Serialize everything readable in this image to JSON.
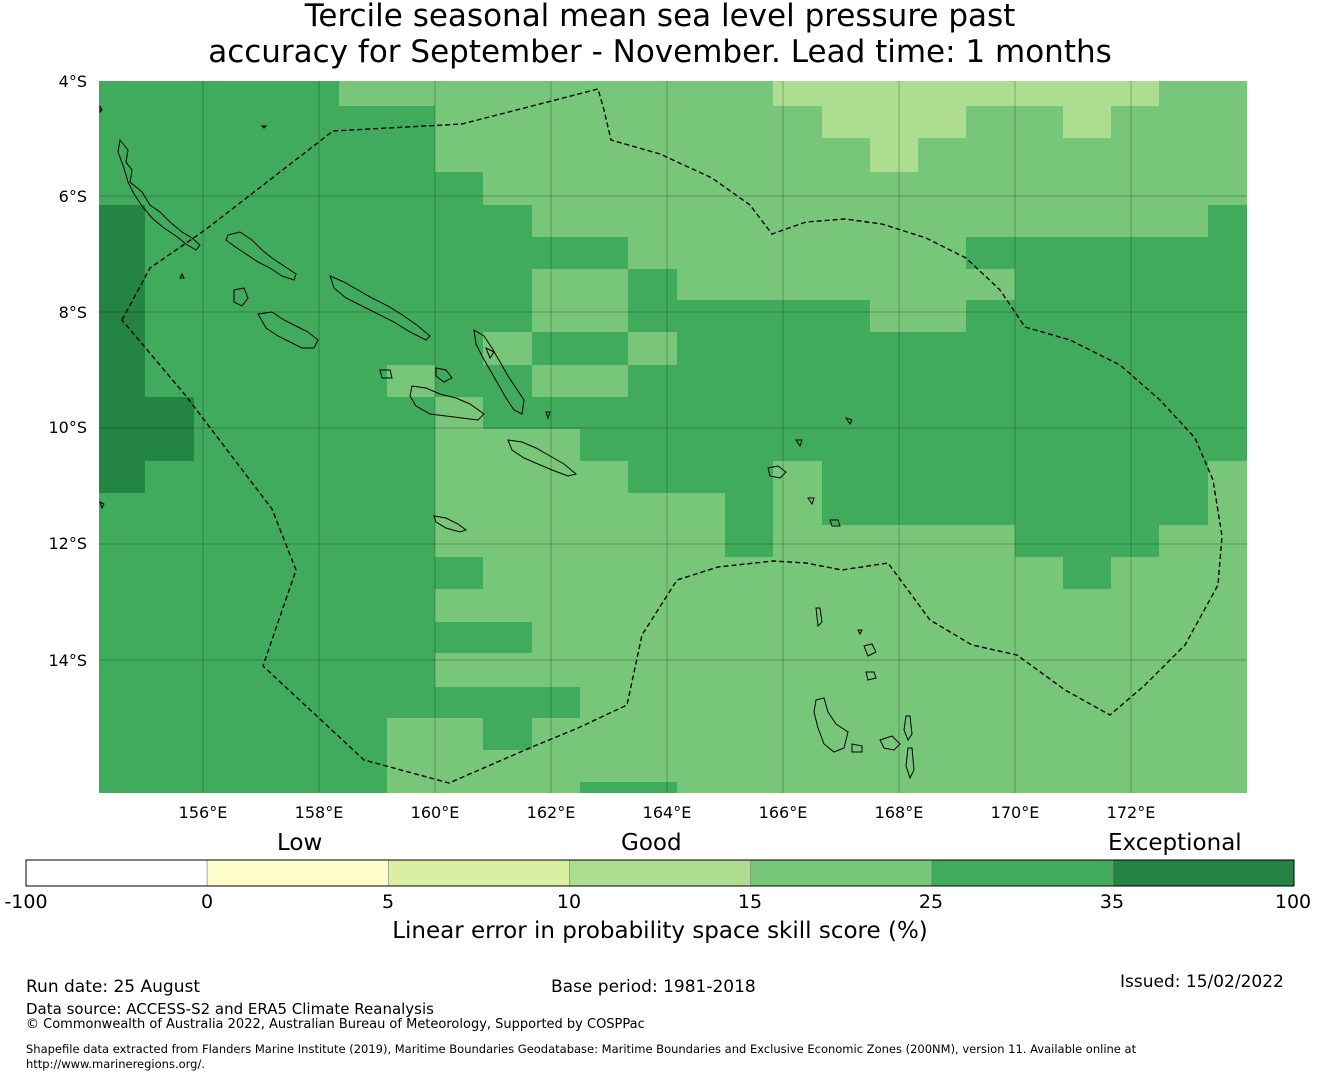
{
  "title": {
    "line1": "Tercile seasonal mean sea level pressure past",
    "line2": "accuracy for September - November. Lead time: 1 months"
  },
  "map": {
    "lat_range": [
      -16.3,
      -4.0
    ],
    "lon_range": [
      154.2,
      174.0
    ],
    "lat_ticks": [
      "4°S",
      "6°S",
      "8°S",
      "10°S",
      "12°S",
      "14°S"
    ],
    "lon_ticks": [
      "156°E",
      "158°E",
      "160°E",
      "162°E",
      "164°E",
      "166°E",
      "168°E",
      "170°E",
      "172°E"
    ],
    "grid_cell_deg": 0.833,
    "region": "Solomon Islands EEZ"
  },
  "colorbar": {
    "categories": [
      "Low",
      "Good",
      "Exceptional"
    ],
    "tick_labels": [
      "-100",
      "0",
      "5",
      "10",
      "15",
      "25",
      "35",
      "100"
    ],
    "bins": [
      {
        "from": -100,
        "to": 0,
        "color": "#ffffff"
      },
      {
        "from": 0,
        "to": 5,
        "color": "#ffffcc"
      },
      {
        "from": 5,
        "to": 10,
        "color": "#d9f0a3"
      },
      {
        "from": 10,
        "to": 15,
        "color": "#addd8e"
      },
      {
        "from": 15,
        "to": 25,
        "color": "#78c679"
      },
      {
        "from": 25,
        "to": 35,
        "color": "#41ab5d"
      },
      {
        "from": 35,
        "to": 100,
        "color": "#238443"
      }
    ],
    "label": "Linear error in probability space skill score (%)"
  },
  "footer": {
    "run_date": "Run date: 25 August",
    "base_period": "Base period: 1981-2018",
    "issued": "Issued: 15/02/2022",
    "data_source": "Data source: ACCESS-S2 and ERA5 Climate Reanalysis",
    "copyright": "© Commonwealth of Australia 2022, Australian Bureau of Meteorology, Supported by COSPPac",
    "shapefile_line1": "Shapefile data extracted from Flanders Marine Institute (2019), Maritime Boundaries Geodatabase: Maritime Boundaries and Exclusive Economic Zones (200NM), version 11. Available online at",
    "shapefile_line2": "http://www.marineregions.org/."
  }
}
